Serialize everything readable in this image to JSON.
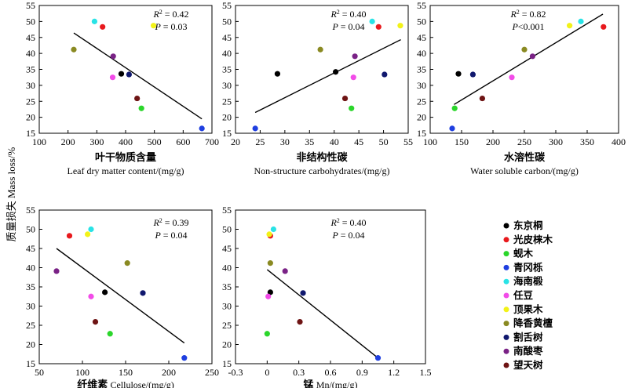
{
  "y_axis_label": "质量损失 Mass loss/%",
  "legend": [
    {
      "name": "东京桐",
      "color": "#000000"
    },
    {
      "name": "光皮梾木",
      "color": "#e8191d"
    },
    {
      "name": "蚬木",
      "color": "#2bd62b"
    },
    {
      "name": "青冈栎",
      "color": "#1f3fe0"
    },
    {
      "name": "海南椴",
      "color": "#29e3e6"
    },
    {
      "name": "任豆",
      "color": "#f24ce8"
    },
    {
      "name": "顶果木",
      "color": "#f2f218"
    },
    {
      "name": "降香黄檀",
      "color": "#8a8a22"
    },
    {
      "name": "割舌树",
      "color": "#10186e"
    },
    {
      "name": "南酸枣",
      "color": "#7a2286"
    },
    {
      "name": "望天树",
      "color": "#6e1414"
    }
  ],
  "chart_data": [
    {
      "type": "scatter",
      "xlabel_cn": "叶干物质含量",
      "xlabel_en": "Leaf dry matter content/(mg/g)",
      "xlim": [
        100,
        700
      ],
      "xticks": [
        100,
        200,
        300,
        400,
        500,
        600,
        700
      ],
      "ylim": [
        15,
        55
      ],
      "yticks": [
        15,
        20,
        25,
        30,
        35,
        40,
        45,
        50,
        55
      ],
      "r2_label": "R",
      "r2_value": "= 0.42",
      "p_label": "P",
      "p_value": "= 0.03",
      "x": [
        385,
        320,
        455,
        665,
        292,
        355,
        497,
        220,
        412,
        357,
        440
      ],
      "y": [
        33.6,
        48.3,
        22.8,
        16.5,
        50.0,
        32.5,
        48.7,
        41.2,
        33.4,
        39.1,
        25.9
      ],
      "fit": [
        [
          220,
          46.4
        ],
        [
          665,
          19.5
        ]
      ]
    },
    {
      "type": "scatter",
      "xlabel_cn": "非结构性碳",
      "xlabel_en": "Non-structure carbohydrates/(mg/g)",
      "xlim": [
        20,
        55
      ],
      "xticks": [
        20,
        25,
        30,
        35,
        40,
        45,
        50,
        55
      ],
      "ylim": [
        15,
        55
      ],
      "yticks": [
        15,
        20,
        25,
        30,
        35,
        40,
        45,
        50,
        55
      ],
      "r2_label": "R",
      "r2_value": "= 0.40",
      "p_label": "P",
      "p_value": "= 0.04",
      "x": [
        28.5,
        40.3,
        49.0,
        43.5,
        24.0,
        47.7,
        43.9,
        53.4,
        37.2,
        50.2,
        44.2,
        42.2
      ],
      "y": [
        33.6,
        34.2,
        48.3,
        22.8,
        16.5,
        50.0,
        32.5,
        48.7,
        41.2,
        33.4,
        39.1,
        25.9
      ],
      "colors": [
        "#000000",
        "#000000",
        "#e8191d",
        "#2bd62b",
        "#1f3fe0",
        "#29e3e6",
        "#f24ce8",
        "#f2f218",
        "#8a8a22",
        "#10186e",
        "#7a2286",
        "#6e1414"
      ],
      "fit": [
        [
          24,
          21.5
        ],
        [
          53.5,
          44.3
        ]
      ]
    },
    {
      "type": "scatter",
      "xlabel_cn": "水溶性碳",
      "xlabel_en": "Water soluble carbon/(mg/g)",
      "xlim": [
        100,
        400
      ],
      "xticks": [
        100,
        150,
        200,
        250,
        300,
        350,
        400
      ],
      "ylim": [
        15,
        55
      ],
      "yticks": [
        15,
        20,
        25,
        30,
        35,
        40,
        45,
        50,
        55
      ],
      "r2_label": "R",
      "r2_value": "= 0.82",
      "p_label": "P",
      "p_value": "<0.001",
      "x": [
        145,
        376,
        139,
        135,
        340,
        230,
        322,
        250,
        168,
        263,
        183
      ],
      "y": [
        33.6,
        48.3,
        22.8,
        16.5,
        50.0,
        32.5,
        48.7,
        41.2,
        33.4,
        39.1,
        25.9
      ],
      "fit": [
        [
          138,
          24.0
        ],
        [
          375,
          52.3
        ]
      ]
    },
    {
      "type": "scatter",
      "xlabel_cn": "纤维素",
      "xlabel_en": "Cellulose/(mg/g)",
      "xlim": [
        50,
        250
      ],
      "xticks": [
        50,
        100,
        150,
        200,
        250
      ],
      "ylim": [
        15,
        55
      ],
      "yticks": [
        15,
        20,
        25,
        30,
        35,
        40,
        45,
        50,
        55
      ],
      "r2_label": "R",
      "r2_value": "= 0.39",
      "p_label": "P",
      "p_value": "= 0.04",
      "x": [
        126,
        85,
        132,
        218,
        110,
        110,
        106,
        152,
        170,
        70,
        115
      ],
      "y": [
        33.6,
        48.3,
        22.8,
        16.5,
        50.0,
        32.5,
        48.7,
        41.2,
        33.4,
        39.1,
        25.9
      ],
      "fit": [
        [
          70,
          45.0
        ],
        [
          218,
          20.4
        ]
      ]
    },
    {
      "type": "scatter",
      "xlabel_cn": "锰",
      "xlabel_en": "Mn/(mg/g)",
      "xlim": [
        -0.3,
        1.5
      ],
      "xticks": [
        -0.3,
        0,
        0.3,
        0.6,
        0.9,
        1.2,
        1.5
      ],
      "ylim": [
        15,
        55
      ],
      "yticks": [
        15,
        20,
        25,
        30,
        35,
        40,
        45,
        50,
        55
      ],
      "r2_label": "R",
      "r2_value": "= 0.40",
      "p_label": "P",
      "p_value": "= 0.04",
      "x": [
        0.03,
        0.03,
        0.0,
        1.05,
        0.06,
        0.01,
        0.02,
        0.03,
        0.34,
        0.17,
        0.31
      ],
      "y": [
        33.6,
        48.3,
        22.8,
        16.5,
        50.0,
        32.5,
        48.7,
        41.2,
        33.4,
        39.1,
        25.9
      ],
      "fit": [
        [
          0.0,
          39.5
        ],
        [
          1.05,
          16.5
        ]
      ]
    }
  ]
}
